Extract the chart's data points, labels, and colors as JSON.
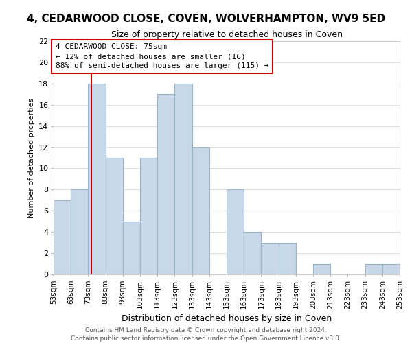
{
  "title": "4, CEDARWOOD CLOSE, COVEN, WOLVERHAMPTON, WV9 5ED",
  "subtitle": "Size of property relative to detached houses in Coven",
  "xlabel": "Distribution of detached houses by size in Coven",
  "ylabel": "Number of detached properties",
  "footer_line1": "Contains HM Land Registry data © Crown copyright and database right 2024.",
  "footer_line2": "Contains public sector information licensed under the Open Government Licence v3.0.",
  "annotation_title": "4 CEDARWOOD CLOSE: 75sqm",
  "annotation_line1": "← 12% of detached houses are smaller (16)",
  "annotation_line2": "88% of semi-detached houses are larger (115) →",
  "property_size": 75,
  "bar_edges": [
    53,
    63,
    73,
    83,
    93,
    103,
    113,
    123,
    133,
    143,
    153,
    163,
    173,
    183,
    193,
    203,
    213,
    223,
    233,
    243,
    253
  ],
  "bar_heights": [
    7,
    8,
    18,
    11,
    5,
    11,
    17,
    18,
    12,
    0,
    8,
    4,
    3,
    3,
    0,
    1,
    0,
    0,
    1,
    1
  ],
  "bar_color": "#c8d8e8",
  "bar_edge_color": "#9ab4c8",
  "vline_color": "#cc0000",
  "annotation_box_color": "#ffffff",
  "annotation_box_edge": "#cc0000",
  "ylim": [
    0,
    22
  ],
  "yticks": [
    0,
    2,
    4,
    6,
    8,
    10,
    12,
    14,
    16,
    18,
    20,
    22
  ],
  "grid_color": "#dddddd",
  "background_color": "#ffffff",
  "title_fontsize": 11,
  "subtitle_fontsize": 9,
  "ylabel_fontsize": 8,
  "xlabel_fontsize": 9,
  "tick_fontsize": 8,
  "xtick_fontsize": 7.5,
  "footer_fontsize": 6.5,
  "annotation_fontsize": 8
}
